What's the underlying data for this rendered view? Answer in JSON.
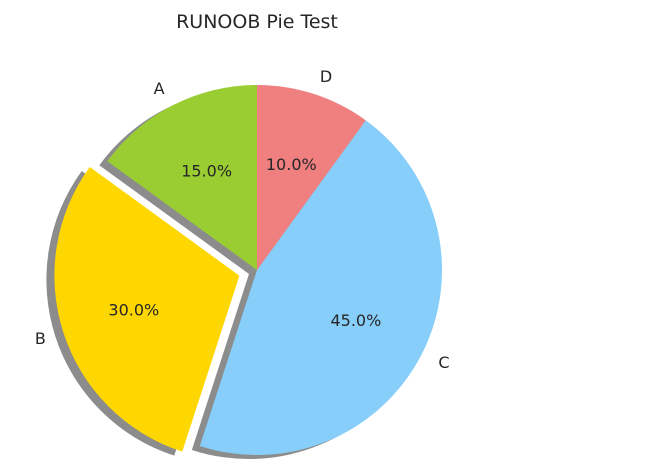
{
  "chart_data": {
    "type": "pie",
    "title": "RUNOOB Pie Test",
    "labels": [
      "A",
      "B",
      "C",
      "D"
    ],
    "values": [
      15,
      30,
      45,
      10
    ],
    "percent_labels": [
      "15.0%",
      "30.0%",
      "45.0%",
      "10.0%"
    ],
    "colors": [
      "#9ACD32",
      "#FFD700",
      "#87CEFA",
      "#F08080"
    ],
    "explode": [
      0,
      0.1,
      0,
      0
    ],
    "start_angle_deg": 90,
    "direction": "counterclockwise",
    "shadow": true
  }
}
